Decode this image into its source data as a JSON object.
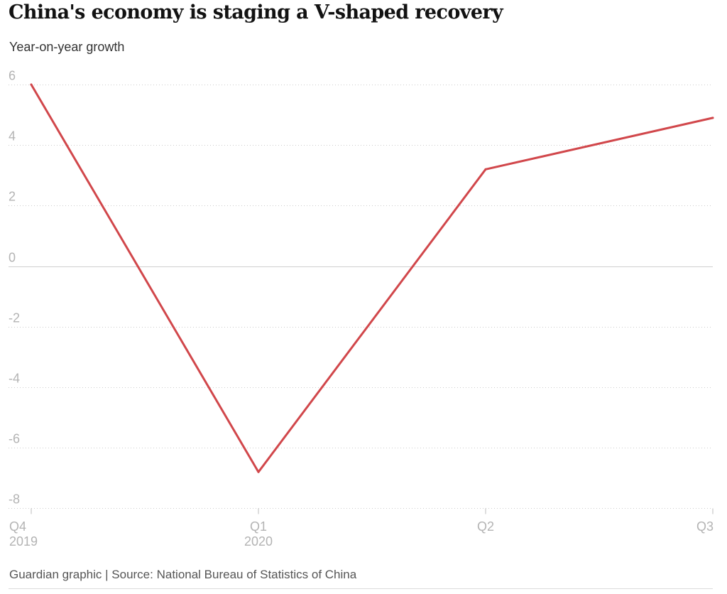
{
  "header": {
    "title": "China's economy is staging a V-shaped recovery",
    "subtitle": "Year-on-year growth"
  },
  "footer": {
    "source": "Guardian graphic | Source: National Bureau of Statistics of China"
  },
  "colors": {
    "line": "#d1474b",
    "grid": "#cccccc",
    "zero_line": "#cfcfcf",
    "tick_text": "#b3b3b3"
  },
  "chart_data": {
    "type": "line",
    "title": "China's economy is staging a V-shaped recovery",
    "ylabel": "Year-on-year growth",
    "xlabel": "",
    "categories": [
      "Q4 2019",
      "Q1 2020",
      "Q2",
      "Q3"
    ],
    "x_tick_labels": [
      [
        "Q4",
        "2019"
      ],
      [
        "Q1",
        "2020"
      ],
      [
        "Q2"
      ],
      [
        "Q3"
      ]
    ],
    "series": [
      {
        "values": [
          6.0,
          -6.8,
          3.2,
          4.9
        ]
      }
    ],
    "y_ticks": [
      6,
      4,
      2,
      0,
      -2,
      -4,
      -6,
      -8
    ],
    "y_tick_labels": [
      "6",
      "4",
      "2",
      "0",
      "-2",
      "-4",
      "-6",
      "-8"
    ],
    "ylim": [
      -8,
      6
    ],
    "grid": true,
    "legend": "none"
  }
}
